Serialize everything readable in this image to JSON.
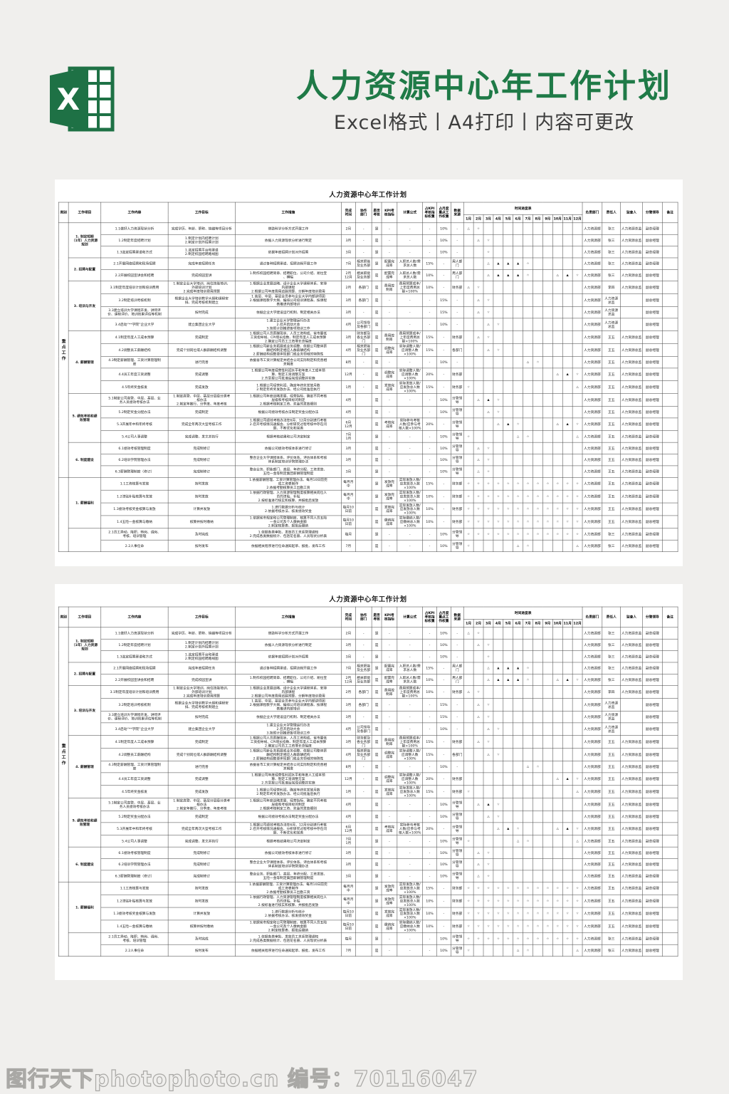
{
  "page": {
    "header": {
      "title": "人力资源中心年工作计划",
      "subtitle": "Excel格式丨A4打印丨内容可更改",
      "brand_color": "#1f7a47"
    },
    "footer": {
      "watermark": "图行天下photophoto.cn 编号：70116047"
    }
  },
  "spreadsheet": {
    "title": "人力资源中心年工作计划",
    "columns_left": [
      {
        "key": "cat",
        "label": "类别"
      },
      {
        "key": "project",
        "label": "工作项目"
      },
      {
        "key": "content",
        "label": "工作内容"
      },
      {
        "key": "target",
        "label": "工作目标"
      },
      {
        "key": "measures",
        "label": "工作措施"
      },
      {
        "key": "deadline",
        "label": "完成\n时间"
      },
      {
        "key": "coop",
        "label": "协作\n部门"
      },
      {
        "key": "assessed",
        "label": "是否\n考核"
      },
      {
        "key": "kpi",
        "label": "KPI考\n核指标"
      },
      {
        "key": "formula",
        "label": "计算公式"
      },
      {
        "key": "kpi_weight",
        "label": "占KPI\n考核指\n标权重"
      },
      {
        "key": "monthly_weight",
        "label": "占月度\n重点工\n作权重"
      },
      {
        "key": "source",
        "label": "数据\n来源"
      }
    ],
    "timeline_label": "时间进度表",
    "months": [
      "1月",
      "2月",
      "3月",
      "4月",
      "5月",
      "6月",
      "7月",
      "8月",
      "9月",
      "10月",
      "11月",
      "12月"
    ],
    "columns_right": [
      {
        "key": "dept",
        "label": "负责部门"
      },
      {
        "key": "owner",
        "label": "责任人"
      },
      {
        "key": "supervisor",
        "label": "监查人"
      },
      {
        "key": "leader",
        "label": "分管领导"
      },
      {
        "key": "note",
        "label": "备注"
      }
    ],
    "symbols": {
      "plan": "△",
      "in_progress": "▲",
      "complete": "☆"
    },
    "defaults": {
      "coop": "-",
      "assessed": "是",
      "kpi": "-",
      "formula": "-",
      "kpi_weight": "-",
      "monthly_weight": "-",
      "source": "-",
      "dept": "人力资源部",
      "supervisor": "人力资源总监",
      "leader": "副总经理",
      "note": ""
    },
    "categories": [
      {
        "label": "重点工作",
        "groups": [
          {
            "label": "1. 制定短期\n（1年）人力资源\n规划",
            "rows": [
              {
                "content": "1.1做好人力资源现状分析",
                "target": "完成学历、年龄、职称、缺编等项目分析",
                "measures": "借助科学分析方式开展工作",
                "deadline": "2月",
                "monthly_weight": "10%",
                "timeline": {
                  "1": "△",
                  "2": "☆"
                },
                "owner": "张三"
              },
              {
                "content": "1.2制定年度招聘计划",
                "target": "1.制定计划内招聘计划\n2.制定计划外招聘计划",
                "measures": "依据人力资源现状分析进行制定",
                "deadline": "3月",
                "monthly_weight": "10%",
                "timeline": {
                  "2": "△",
                  "3": "☆"
                },
                "owner": "张三"
              },
              {
                "content": "1.3选定招聘渠道和方式",
                "target": "1.选定招聘平台和渠道\n2.制定校园招聘路线图",
                "measures": "依据年度招聘计划对外招聘",
                "deadline": "3月",
                "monthly_weight": "10%",
                "timeline": {
                  "3": "☆"
                },
                "owner": "张三"
              }
            ]
          },
          {
            "label": "2. 招聘与配置",
            "rows": [
              {
                "content": "2.1开展网络招聘和现场招聘",
                "target": "完成年度招聘任务",
                "measures": "通过各种招聘渠道、招聘流程开展工作",
                "deadline": "7月",
                "coop": "相关职能\n及业务部",
                "kpi": "配置完\n成率",
                "formula": "入职总人数/需\n求总人数",
                "kpi_weight": "15%",
                "source": "用人部\n门",
                "timeline": {
                  "3": "△",
                  "4": "▲",
                  "5": "▲",
                  "6": "▲",
                  "7": "☆"
                },
                "owner": "张三"
              },
              {
                "content": "2.2开展校园宣讲会和招聘",
                "target": "完成校园宣讲",
                "measures": "1.制作校园招聘简章、招聘职位、公司介绍、易拉宝\n、横幅",
                "deadline": "2月\n12月",
                "coop": "相关职能\n及业务部",
                "kpi": "配置完\n成率",
                "formula": "入职总人数/需\n求总人数",
                "kpi_weight": "10%",
                "source": "用人部\n门",
                "timeline": {
                  "3": "△",
                  "4": "▲",
                  "5": "▲",
                  "6": "▲",
                  "7": "☆",
                  "10": "△",
                  "11": "▲",
                  "12": "☆"
                },
                "owner": "张三"
              }
            ]
          },
          {
            "label": "3. 培训与开发",
            "rows": [
              {
                "content": "3.1制定年度培训计划和培训费用",
                "target": "1.制定企业大学培训、岗位技能培训、\n外部培训计划\n2.完成年度培训费用预算",
                "measures": "1.根据企业发展战略、设计企业大学课程体系、安排\n内部课程\n2.根据公司年度费用追踪预算、分解年度培训费用",
                "deadline": "2月",
                "coop": "各部门",
                "kpi": "费用控\n制率",
                "formula": "费用预算成本/\n上年度费用总\n额×100%",
                "kpi_weight": "10%",
                "source": "财务部",
                "timeline": {
                  "1": "△",
                  "2": "☆"
                },
                "owner": "李四"
              },
              {
                "content": "3.2制定培训考核机制",
                "target": "根据企业大学培训教学大纲和课程安\n排、完成考核机制建立",
                "measures": "1.高层、中层、基层全员参与企业大学内部讲师团\n2.根据课程教学大纲、编排公司培训课程表、按课程\n表推进内部培训",
                "deadline": "3月",
                "coop": "各部门",
                "monthly_weight": "15%",
                "timeline": {
                  "2": "△",
                  "3": "☆"
                },
                "owner": "人力资源总监",
                "supervisor": ""
              },
              {
                "content": "3.3建立培训大学课程开发、讲师评\n价、课程评价、培训效果评估等机制",
                "target": "按时完成",
                "measures": "依据企业大学建设运行机制、制定相关办法",
                "deadline": "3月",
                "monthly_weight": "15%",
                "timeline": {
                  "2": "△",
                  "3": "☆"
                },
                "owner": "人力资源总监",
                "supervisor": ""
              },
              {
                "content": "3.4启动“**学院”企业大学",
                "target": "建立集团企业大学",
                "measures": "1.建立企业大学管理运行办法\n2.召开启动大会\n3.按照计划推进各项培训工作",
                "deadline": "4月",
                "coop": "公司领导\n及各部门",
                "monthly_weight": "10%",
                "timeline": {
                  "3": "△",
                  "4": "☆"
                },
                "owner": "人力资源总监",
                "supervisor": ""
              }
            ]
          },
          {
            "label": "4. 薪酬管理",
            "rows": [
              {
                "content": "4.1制定年度人工成本预算",
                "target": "完成制定",
                "measures": "1.根据公司人员薪酬现状、人员工资构成、省市最低\n工资指导线、CPI增长指数、制定年度人工成本预算\n2.确定公司员工工资增长总幅度",
                "deadline": "3月",
                "coop": "财务部及\n各业务部\n门",
                "kpi": "费用控\n制率",
                "formula": "费用预算成本/\n上年度费用总\n额×100%",
                "kpi_weight": "15%",
                "source": "财务部",
                "timeline": {
                  "2": "△",
                  "3": "☆"
                },
                "owner": "王五"
              },
              {
                "content": "4.2调整员工薪酬结构",
                "target": "完成个别岗位或人群薪酬结构调整",
                "measures": "1.根据公司新业务拓展或业务调整、依据公司整体薪\n酬结构制定相应人群薪酬结构\n2.薪酬结构调整要体现部门或业务领域的特殊性",
                "deadline": "4月",
                "coop": "相关职能\n及业务部\n门",
                "kpi": "调整完\n成率",
                "formula": "实际调整人数/\n应调整人数\n×100%",
                "kpi_weight": "15%",
                "source": "各部门",
                "timeline": {
                  "3": "△",
                  "4": "☆"
                },
                "owner": "王五"
              },
              {
                "content": "4.3制定薪酬管理、工资计算管理制\n度",
                "target": "进行完善",
                "measures": "依据省市工资计算规定并结合公司实际制定和完善相\n关制度",
                "deadline": "8月",
                "monthly_weight": "10%",
                "timeline": {
                  "7": "△",
                  "8": "☆"
                },
                "owner": "王五"
              },
              {
                "content": "4.4员工年度工资调整",
                "target": "完成调整",
                "measures": "1.根据公司年度经营性利润水平和年度人工成本预\n算、制定工资调整方案\n2.方案报公司批准后完成调整并实施",
                "deadline": "12月",
                "kpi": "调整完\n成率",
                "formula": "实际调整人数/\n应调整人数\n×100%",
                "kpi_weight": "20%",
                "source": "财务部",
                "timeline": {
                  "10": "△",
                  "11": "▲",
                  "12": "☆"
                },
                "owner": "王五"
              },
              {
                "content": "4.5年终奖金核发",
                "target": "完成发放",
                "measures": "1.根据公司经营利润、确定年终奖发放月数\n2.制定年终奖发放办法、经公司批准后执行",
                "deadline": "1月",
                "kpi": "发放完\n成率",
                "formula": "实际发放人数/\n应发放总人数\n×100%",
                "kpi_weight": "15%",
                "source": "财务部",
                "timeline": {
                  "1": "☆",
                  "12": "△"
                },
                "owner": "王五"
              }
            ]
          },
          {
            "label": "5. 绩效考核和绩\n效管理",
            "rows": [
              {
                "content": "5.1制定公司高管、中层、基层、业\n务人员绩效考核办法",
                "target": "1.制定高管、中层、基层分层级分类考\n核办法\n2.制定年推行、分季度、年度考核",
                "measures": "1.根据公司年度战略发展、经营指标、确定不同考核\n层级和考核目标的制定\n2.根据考核制定工资、奖金的发放细则",
                "deadline": "4月",
                "coop": "",
                "monthly_weight": "10%",
                "source": "分管领\n导",
                "timeline": {
                  "2": "△",
                  "3": "▲",
                  "4": "☆"
                },
                "owner": "王五"
              },
              {
                "content": "5.2制定奖金分配办法",
                "target": "完成制定",
                "measures": "根据公司绩效考核办法制定奖金分配办法",
                "deadline": "4月",
                "coop": "",
                "monthly_weight": "10%",
                "source": "分管领\n导",
                "timeline": {
                  "3": "△",
                  "4": "☆"
                },
                "owner": "王五"
              },
              {
                "content": "5.3开展年中和年终考核",
                "target": "完成全年两次大型考核工作",
                "measures": "1.根据公司绩效考核办法在6月、12月分别进行考核\n2.召开考核情况通报会、分析研究过程考核中存在问\n题、不断优化和完善",
                "deadline": "6月\n12月",
                "coop": "",
                "kpi": "考核完\n成率",
                "formula": "实际参与考核\n人数/应参与考\n核人数×100%",
                "kpi_weight": "20%",
                "source": "分管领\n导",
                "timeline": {
                  "4": "△",
                  "5": "▲",
                  "6": "☆",
                  "10": "△",
                  "11": "▲",
                  "12": "☆"
                },
                "owner": "王五"
              },
              {
                "content": "5.4公司人事调整",
                "target": "完成调整、发文并执行",
                "measures": "根据考核结果和公司决定制定",
                "deadline": "7月\n1月",
                "coop": "",
                "monthly_weight": "10%",
                "source": "分管领\n导",
                "timeline": {
                  "1": "☆",
                  "6": "△",
                  "7": "☆",
                  "12": "△"
                },
                "owner": "王五"
              }
            ]
          },
          {
            "label": "6. 制度建设",
            "rows": [
              {
                "content": "6.1绩效考核管理制度",
                "target": "完成制修订",
                "measures": "依据公司绩效考核体系进行修订",
                "deadline": "3月",
                "coop": "",
                "monthly_weight": "10%",
                "source": "分管领\n导",
                "timeline": {
                  "2": "△",
                  "3": "☆"
                },
                "owner": "王五"
              },
              {
                "content": "6.2培训学院管理办法",
                "target": "完成制修订",
                "measures": "整合企业大学课程体系、评价体系、评估体系和考核\n体系制定培训学院管理办法",
                "deadline": "3月",
                "coop": "",
                "monthly_weight": "10%",
                "source": "分管领\n导",
                "timeline": {
                  "2": "△",
                  "3": "☆"
                },
                "owner": "王五"
              },
              {
                "content": "6.3薪酬管理制度（修订）",
                "target": "完成制修订",
                "measures": "整合业务、职能部门、高层、年终分配、工资发放、\n五险一金等制定集团薪酬管理制度",
                "deadline": "3月",
                "coop": "",
                "monthly_weight": "10%",
                "source": "分管领\n导",
                "timeline": {
                  "2": "△",
                  "3": "☆"
                },
                "owner": "王五"
              }
            ]
          }
        ]
      },
      {
        "label": "",
        "groups": [
          {
            "label": "1. 薪酬福利",
            "rows": [
              {
                "content": "1.1工资核算与发放",
                "target": "按时发放",
                "measures": "1.依据薪酬管理、工资计算管理办法、每月10日前完\n成工资表制作\n2.依据考勤核算员工出勤工资",
                "deadline": "每月月\n中",
                "coop": "",
                "kpi": "发放完\n成率",
                "formula": "实际发放人数/\n应发放总人数\n×100%",
                "kpi_weight": "15%",
                "source": "财务部",
                "timeline": {
                  "all": "☆"
                },
                "owner": "王五"
              },
              {
                "content": "1.2津贴补贴核算与发放",
                "target": "按时发放",
                "measures": "1.依据行政管理、人力资源管理制度核算相关岗位人\n员的津贴、补贴\n2.按标准进行核实和核算、并报批后发放",
                "deadline": "每月月\n中",
                "coop": "",
                "kpi": "发放完\n成率",
                "formula": "实际发放人数/\n应发放总人数\n×100%",
                "kpi_weight": "10%",
                "source": "财务部",
                "timeline": {
                  "all": "☆"
                },
                "owner": "王五"
              },
              {
                "content": "1.3绩效考核奖金核算与发放",
                "target": "计算并发放",
                "measures": "1.进行数据分析与统计\n2.依据考核办法、核发绩效奖金",
                "deadline": "每月10\n日前",
                "coop": "",
                "kpi": "发放完\n成率",
                "formula": "实际发放人数/\n应发放总人数\n×100%",
                "kpi_weight": "10%",
                "source": "财务部",
                "timeline": {
                  "all": "☆"
                },
                "owner": "王五"
              },
              {
                "content": "1.4五险一金核算与缴纳",
                "target": "核算并按时缴纳",
                "measures": "1.依据省市规定和公司管理制度、核算不同人员五险\n一金公司及个人缴纳金额\n2.制定核算表、报批后缴纳",
                "deadline": "每月10\n日前",
                "coop": "",
                "kpi": "缴纳完\n成率",
                "formula": "实际缴纳人数/\n应缴纳总人数\n×100%",
                "kpi_weight": "10%",
                "source": "财务部",
                "timeline": {
                  "all": "☆"
                },
                "owner": "王五"
              }
            ]
          },
          {
            "label": "",
            "rows": [
              {
                "content": "2.1员工异动、降职、转岗、调岗、\n考核、培训管理",
                "target": "及时完成",
                "measures": "1.依据各类审批、发放员工关系管理通知\n2.完成各类数据统计、包括花名册、人员现状分析表",
                "deadline": "每月",
                "coop": "",
                "monthly_weight": "10%",
                "source": "分管领\n导",
                "timeline": {
                  "all": "☆"
                },
                "owner": "张三"
              },
              {
                "content": "2.2人事任命",
                "target": "按时发布",
                "measures": "依据相关程序进行任命通知起草、报批、发布工作",
                "deadline": "7月",
                "coop": "",
                "monthly_weight": "10%",
                "source": "分管领\n导",
                "timeline": {
                  "1": "☆",
                  "6": "△",
                  "7": "☆",
                  "12": "△"
                },
                "owner": "张三"
              }
            ]
          }
        ]
      }
    ]
  }
}
